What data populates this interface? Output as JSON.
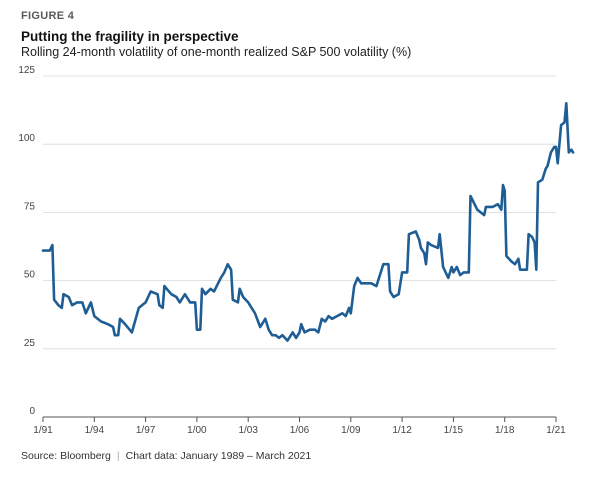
{
  "figure_label": "FIGURE 4",
  "chart_data": {
    "type": "line",
    "title": "Putting the fragility in perspective",
    "subtitle": "Rolling 24-month volatility of one-month realized S&P 500 volatility (%)",
    "xlabel": "",
    "ylabel": "",
    "ylim": [
      0,
      125
    ],
    "yticks": [
      0,
      25,
      50,
      75,
      100,
      125
    ],
    "ytick_labels": [
      "0",
      "25",
      "50",
      "75",
      "100",
      "125"
    ],
    "xlim": [
      1991.0,
      2021.17
    ],
    "xticks": [
      1991,
      1994,
      1997,
      2000,
      2003,
      2006,
      2009,
      2012,
      2015,
      2018,
      2021
    ],
    "xtick_labels": [
      "1/91",
      "1/94",
      "1/97",
      "1/00",
      "1/03",
      "1/06",
      "1/09",
      "1/12",
      "1/15",
      "1/18",
      "1/21"
    ],
    "grid": "horizontal",
    "line_color": "#1f5e95",
    "series": [
      {
        "values": [
          [
            1991.0,
            61
          ],
          [
            1991.4,
            61
          ],
          [
            1991.55,
            63
          ],
          [
            1991.65,
            43
          ],
          [
            1991.9,
            41
          ],
          [
            1992.1,
            40
          ],
          [
            1992.2,
            45
          ],
          [
            1992.5,
            44
          ],
          [
            1992.7,
            41
          ],
          [
            1993.0,
            42
          ],
          [
            1993.3,
            42
          ],
          [
            1993.5,
            38
          ],
          [
            1993.8,
            42
          ],
          [
            1994.0,
            37
          ],
          [
            1994.4,
            35
          ],
          [
            1994.8,
            34
          ],
          [
            1995.1,
            33
          ],
          [
            1995.2,
            30
          ],
          [
            1995.4,
            30
          ],
          [
            1995.5,
            36
          ],
          [
            1995.8,
            34
          ],
          [
            1996.2,
            31
          ],
          [
            1996.6,
            40
          ],
          [
            1997.0,
            42
          ],
          [
            1997.3,
            46
          ],
          [
            1997.7,
            45
          ],
          [
            1997.8,
            41
          ],
          [
            1998.0,
            40
          ],
          [
            1998.1,
            48
          ],
          [
            1998.5,
            45
          ],
          [
            1998.8,
            44
          ],
          [
            1999.0,
            42
          ],
          [
            1999.3,
            45
          ],
          [
            1999.6,
            42
          ],
          [
            1999.9,
            42
          ],
          [
            2000.0,
            32
          ],
          [
            2000.2,
            32
          ],
          [
            2000.3,
            47
          ],
          [
            2000.5,
            45
          ],
          [
            2000.8,
            47
          ],
          [
            2001.0,
            46
          ],
          [
            2001.4,
            51
          ],
          [
            2001.6,
            53
          ],
          [
            2001.8,
            56
          ],
          [
            2002.0,
            54
          ],
          [
            2002.1,
            43
          ],
          [
            2002.4,
            42
          ],
          [
            2002.5,
            47
          ],
          [
            2002.7,
            44
          ],
          [
            2003.0,
            42
          ],
          [
            2003.4,
            38
          ],
          [
            2003.7,
            33
          ],
          [
            2004.0,
            36
          ],
          [
            2004.2,
            32
          ],
          [
            2004.4,
            30
          ],
          [
            2004.6,
            30
          ],
          [
            2004.8,
            29
          ],
          [
            2005.0,
            30
          ],
          [
            2005.3,
            28
          ],
          [
            2005.6,
            31
          ],
          [
            2005.8,
            29
          ],
          [
            2006.0,
            31
          ],
          [
            2006.1,
            34
          ],
          [
            2006.3,
            31
          ],
          [
            2006.6,
            32
          ],
          [
            2006.9,
            32
          ],
          [
            2007.1,
            31
          ],
          [
            2007.3,
            36
          ],
          [
            2007.5,
            35
          ],
          [
            2007.7,
            37
          ],
          [
            2007.9,
            36
          ],
          [
            2008.2,
            37
          ],
          [
            2008.5,
            38
          ],
          [
            2008.7,
            37
          ],
          [
            2008.9,
            40
          ],
          [
            2009.0,
            38
          ],
          [
            2009.2,
            48
          ],
          [
            2009.4,
            51
          ],
          [
            2009.6,
            49
          ],
          [
            2010.2,
            49
          ],
          [
            2010.5,
            48
          ],
          [
            2010.7,
            52
          ],
          [
            2010.9,
            56
          ],
          [
            2011.2,
            56
          ],
          [
            2011.3,
            46
          ],
          [
            2011.5,
            44
          ],
          [
            2011.8,
            45
          ],
          [
            2012.0,
            53
          ],
          [
            2012.3,
            53
          ],
          [
            2012.4,
            67
          ],
          [
            2012.8,
            68
          ],
          [
            2013.0,
            65
          ],
          [
            2013.1,
            62
          ],
          [
            2013.3,
            60
          ],
          [
            2013.4,
            56
          ],
          [
            2013.5,
            64
          ],
          [
            2013.7,
            63
          ],
          [
            2014.1,
            62
          ],
          [
            2014.2,
            67
          ],
          [
            2014.4,
            55
          ],
          [
            2014.7,
            51
          ],
          [
            2014.9,
            55
          ],
          [
            2015.0,
            53
          ],
          [
            2015.2,
            55
          ],
          [
            2015.4,
            52
          ],
          [
            2015.6,
            53
          ],
          [
            2015.9,
            53
          ],
          [
            2016.0,
            81
          ],
          [
            2016.4,
            76
          ],
          [
            2016.8,
            74
          ],
          [
            2016.9,
            77
          ],
          [
            2017.3,
            77
          ],
          [
            2017.6,
            78
          ],
          [
            2017.8,
            76
          ],
          [
            2017.9,
            85
          ],
          [
            2018.0,
            83
          ],
          [
            2018.1,
            59
          ],
          [
            2018.4,
            57
          ],
          [
            2018.6,
            56
          ],
          [
            2018.8,
            58
          ],
          [
            2018.9,
            54
          ],
          [
            2019.3,
            54
          ],
          [
            2019.4,
            67
          ],
          [
            2019.6,
            66
          ],
          [
            2019.75,
            64
          ],
          [
            2019.85,
            54
          ],
          [
            2019.95,
            86
          ],
          [
            2020.2,
            87
          ],
          [
            2020.4,
            91
          ],
          [
            2020.5,
            92
          ],
          [
            2020.7,
            97
          ],
          [
            2020.9,
            99
          ],
          [
            2021.0,
            99
          ],
          [
            2021.1,
            93
          ],
          [
            2021.3,
            107
          ],
          [
            2021.5,
            108
          ],
          [
            2021.6,
            115
          ],
          [
            2021.75,
            97
          ],
          [
            2021.9,
            98
          ],
          [
            2022.0,
            97
          ]
        ]
      }
    ]
  },
  "footer": {
    "source": "Source: Bloomberg",
    "note": "Chart data: January 1989 – March 2021"
  }
}
